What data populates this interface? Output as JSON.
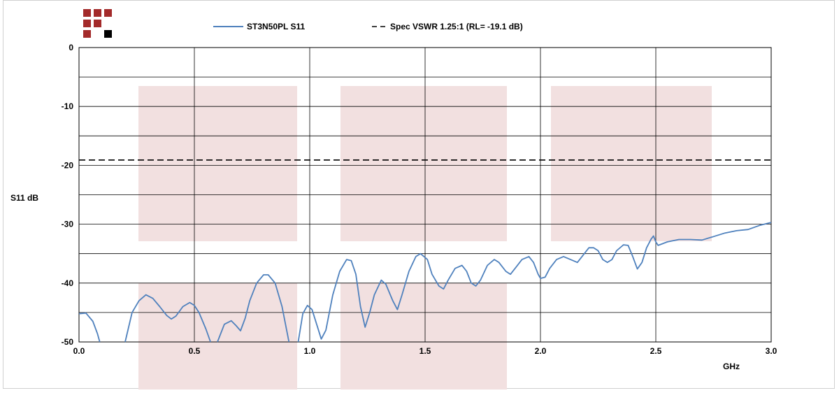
{
  "colors": {
    "s11_line": "#4f81bd",
    "spec_line": "#000000",
    "grid": "#000000",
    "watermark": "#f2e0e0",
    "logo_red": "#a32a2a",
    "logo_black": "#000000"
  },
  "logo": {
    "name": "company-logo-squares"
  },
  "chart_data": {
    "type": "line",
    "xlabel": "GHz",
    "ylabel": "S11 dB",
    "xlim": [
      0,
      3.0
    ],
    "ylim": [
      -50,
      0
    ],
    "x_ticks": [
      "0.0",
      "0.5",
      "1.0",
      "1.5",
      "2.0",
      "2.5",
      "3.0"
    ],
    "x_tick_values": [
      0,
      0.5,
      1.0,
      1.5,
      2.0,
      2.5,
      3.0
    ],
    "y_ticks": [
      "0",
      "-10",
      "-20",
      "-30",
      "-40",
      "-50"
    ],
    "y_tick_values": [
      0,
      -10,
      -20,
      -30,
      -40,
      -50
    ],
    "y_minor_grid": [
      -5,
      -15,
      -25,
      -35,
      -45
    ],
    "grid": true,
    "legend_position": "top",
    "series": [
      {
        "name": "ST3N50PL S11",
        "style": "solid",
        "segments": [
          [
            [
              0.0,
              -45.2
            ],
            [
              0.03,
              -45.1
            ],
            [
              0.06,
              -46.5
            ],
            [
              0.08,
              -48.6
            ],
            [
              0.09,
              -50
            ]
          ],
          [
            [
              0.2,
              -50
            ],
            [
              0.23,
              -45
            ],
            [
              0.26,
              -43
            ],
            [
              0.29,
              -42
            ],
            [
              0.32,
              -42.6
            ],
            [
              0.35,
              -44
            ],
            [
              0.38,
              -45.5
            ],
            [
              0.4,
              -46.1
            ],
            [
              0.42,
              -45.6
            ],
            [
              0.45,
              -44
            ],
            [
              0.48,
              -43.3
            ],
            [
              0.5,
              -43.8
            ],
            [
              0.52,
              -45
            ],
            [
              0.55,
              -47.8
            ],
            [
              0.57,
              -50
            ]
          ],
          [
            [
              0.6,
              -50
            ],
            [
              0.63,
              -47
            ],
            [
              0.66,
              -46.4
            ],
            [
              0.68,
              -47.2
            ],
            [
              0.7,
              -48.1
            ],
            [
              0.72,
              -46
            ],
            [
              0.74,
              -43
            ],
            [
              0.77,
              -40
            ],
            [
              0.8,
              -38.6
            ],
            [
              0.82,
              -38.6
            ],
            [
              0.85,
              -40
            ],
            [
              0.88,
              -44
            ],
            [
              0.9,
              -48
            ],
            [
              0.91,
              -50
            ]
          ],
          [
            [
              0.95,
              -50
            ],
            [
              0.97,
              -45.2
            ],
            [
              0.99,
              -43.8
            ],
            [
              1.01,
              -44.5
            ],
            [
              1.03,
              -47
            ],
            [
              1.05,
              -49.5
            ],
            [
              1.07,
              -48
            ],
            [
              1.1,
              -42
            ],
            [
              1.13,
              -38
            ],
            [
              1.16,
              -36
            ],
            [
              1.18,
              -36.2
            ],
            [
              1.2,
              -38.5
            ],
            [
              1.22,
              -44
            ],
            [
              1.24,
              -47.5
            ],
            [
              1.26,
              -45
            ],
            [
              1.28,
              -42
            ],
            [
              1.31,
              -39.5
            ],
            [
              1.33,
              -40.2
            ],
            [
              1.36,
              -43
            ],
            [
              1.38,
              -44.5
            ],
            [
              1.4,
              -42
            ],
            [
              1.43,
              -38
            ],
            [
              1.46,
              -35.5
            ],
            [
              1.48,
              -35
            ],
            [
              1.51,
              -36
            ],
            [
              1.53,
              -38.5
            ],
            [
              1.56,
              -40.5
            ],
            [
              1.58,
              -41
            ],
            [
              1.6,
              -39.5
            ],
            [
              1.63,
              -37.5
            ],
            [
              1.66,
              -37
            ],
            [
              1.68,
              -38
            ],
            [
              1.7,
              -40
            ],
            [
              1.72,
              -40.5
            ],
            [
              1.74,
              -39.5
            ],
            [
              1.77,
              -37
            ],
            [
              1.8,
              -36
            ],
            [
              1.82,
              -36.5
            ],
            [
              1.85,
              -38
            ],
            [
              1.87,
              -38.5
            ],
            [
              1.89,
              -37.5
            ],
            [
              1.92,
              -36
            ],
            [
              1.95,
              -35.5
            ],
            [
              1.97,
              -36.5
            ],
            [
              1.99,
              -38.5
            ],
            [
              2.0,
              -39.2
            ],
            [
              2.02,
              -39
            ],
            [
              2.04,
              -37.5
            ],
            [
              2.07,
              -36
            ],
            [
              2.1,
              -35.5
            ],
            [
              2.13,
              -36
            ],
            [
              2.16,
              -36.5
            ],
            [
              2.18,
              -35.5
            ],
            [
              2.21,
              -34
            ],
            [
              2.23,
              -34
            ],
            [
              2.25,
              -34.5
            ],
            [
              2.27,
              -36
            ],
            [
              2.29,
              -36.5
            ],
            [
              2.31,
              -36
            ],
            [
              2.33,
              -34.5
            ],
            [
              2.36,
              -33.5
            ],
            [
              2.38,
              -33.6
            ],
            [
              2.4,
              -35.5
            ],
            [
              2.42,
              -37.6
            ],
            [
              2.44,
              -36.5
            ],
            [
              2.46,
              -34
            ],
            [
              2.48,
              -32.5
            ],
            [
              2.49,
              -32
            ],
            [
              2.5,
              -33
            ],
            [
              2.51,
              -33.6
            ],
            [
              2.55,
              -33
            ],
            [
              2.6,
              -32.6
            ],
            [
              2.65,
              -32.6
            ],
            [
              2.7,
              -32.7
            ],
            [
              2.75,
              -32.1
            ],
            [
              2.8,
              -31.5
            ],
            [
              2.85,
              -31.1
            ],
            [
              2.9,
              -30.9
            ],
            [
              2.95,
              -30.2
            ],
            [
              3.0,
              -29.7
            ]
          ]
        ]
      },
      {
        "name": "Spec VSWR 1.25:1 (RL= -19.1 dB)",
        "style": "dashed",
        "segments": [
          [
            [
              0.0,
              -19.1
            ],
            [
              3.0,
              -19.1
            ]
          ]
        ]
      }
    ]
  }
}
